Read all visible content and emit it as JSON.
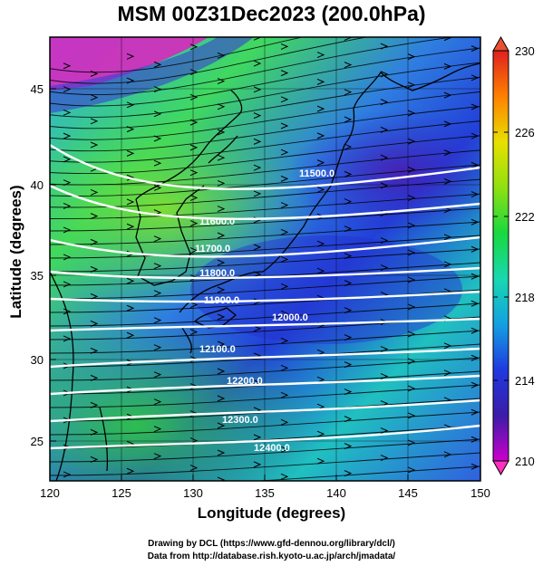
{
  "title": "MSM 00Z31Dec2023 (200.0hPa)",
  "xlabel": "Longitude (degrees)",
  "ylabel": "Latitude  (degrees)",
  "x_ticks": [
    "120",
    "125",
    "130",
    "135",
    "140",
    "145",
    "150"
  ],
  "y_ticks": [
    "25",
    "30",
    "35",
    "40",
    "45"
  ],
  "colorbar": {
    "ticks": [
      "230",
      "226",
      "222",
      "218",
      "214",
      "210"
    ],
    "colors": [
      "#cc00cc",
      "#3b1ca8",
      "#1f3ae0",
      "#14a0e0",
      "#18d8b0",
      "#18d840",
      "#90e010",
      "#e8e000",
      "#ff8000",
      "#e02020"
    ]
  },
  "contours": [
    {
      "label": "11500.0",
      "value": 11500
    },
    {
      "label": "11600.0",
      "value": 11600
    },
    {
      "label": "11700.0",
      "value": 11700
    },
    {
      "label": "11800.0",
      "value": 11800
    },
    {
      "label": "11900.0",
      "value": 11900
    },
    {
      "label": "12000.0",
      "value": 12000
    },
    {
      "label": "12100.0",
      "value": 12100
    },
    {
      "label": "12200.0",
      "value": 12200
    },
    {
      "label": "12300.0",
      "value": 12300
    },
    {
      "label": "12400.0",
      "value": 12400
    }
  ],
  "footer": {
    "line1": "Drawing by DCL (https://www.gfd-dennou.org/library/dcl/)",
    "line2": "Data from http://database.rish.kyoto-u.ac.jp/arch/jmadata/"
  }
}
